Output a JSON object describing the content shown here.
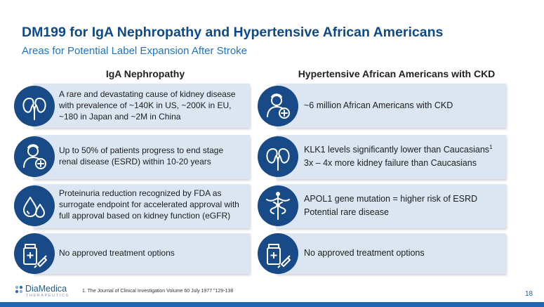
{
  "header": {
    "title": "DM199 for IgA Nephropathy and Hypertensive African Americans",
    "subtitle": "Areas for Potential Label Expansion After Stroke"
  },
  "left": {
    "heading": "IgA Nephropathy",
    "cards": [
      {
        "icon": "kidney-icon",
        "lines": [
          "A rare and devastating cause of kidney disease",
          "with prevalence of ~140K in US, ~200K in EU,",
          "~180 in Japan and ~2M in China"
        ]
      },
      {
        "icon": "patient-icon",
        "lines": [
          "Up  to 50% of patients progress to end stage",
          "renal disease (ESRD) within 10-20 years"
        ]
      },
      {
        "icon": "drops-icon",
        "lines": [
          "Proteinuria reduction recognized by FDA as",
          "surrogate endpoint for accelerated approval with",
          "full approval based on kidney function (eGFR)"
        ]
      },
      {
        "icon": "medicine-icon",
        "lines": [
          "No approved treatment options"
        ]
      }
    ]
  },
  "right": {
    "heading": "Hypertensive African Americans with CKD",
    "cards": [
      {
        "icon": "patient-icon",
        "lines": [
          "~6 million African Americans with CKD"
        ]
      },
      {
        "icon": "kidney-icon",
        "line1": "KLK1 levels significantly lower than Caucasians",
        "line1_sup": "1",
        "line2": "3x – 4x more kidney failure than Caucasians"
      },
      {
        "icon": "caduceus-icon",
        "lines": [
          "APOL1 gene mutation = higher risk of ESRD",
          "Potential rare disease"
        ]
      },
      {
        "icon": "medicine-icon",
        "lines": [
          "No approved treatment options"
        ]
      }
    ]
  },
  "footer": {
    "logo_name": "DiaMedica",
    "logo_sub": "THERAPEUTICS",
    "footnote": "1. The Journal of Clinical Investigation Volume 60 July 1977 \"129-138",
    "page_number": "18"
  },
  "colors": {
    "title": "#0e4a8a",
    "subtitle": "#1f74c4",
    "card_bg": "#dbe6f2",
    "icon_circle": "#174a86",
    "bottom_bar": "#1f66b2"
  }
}
